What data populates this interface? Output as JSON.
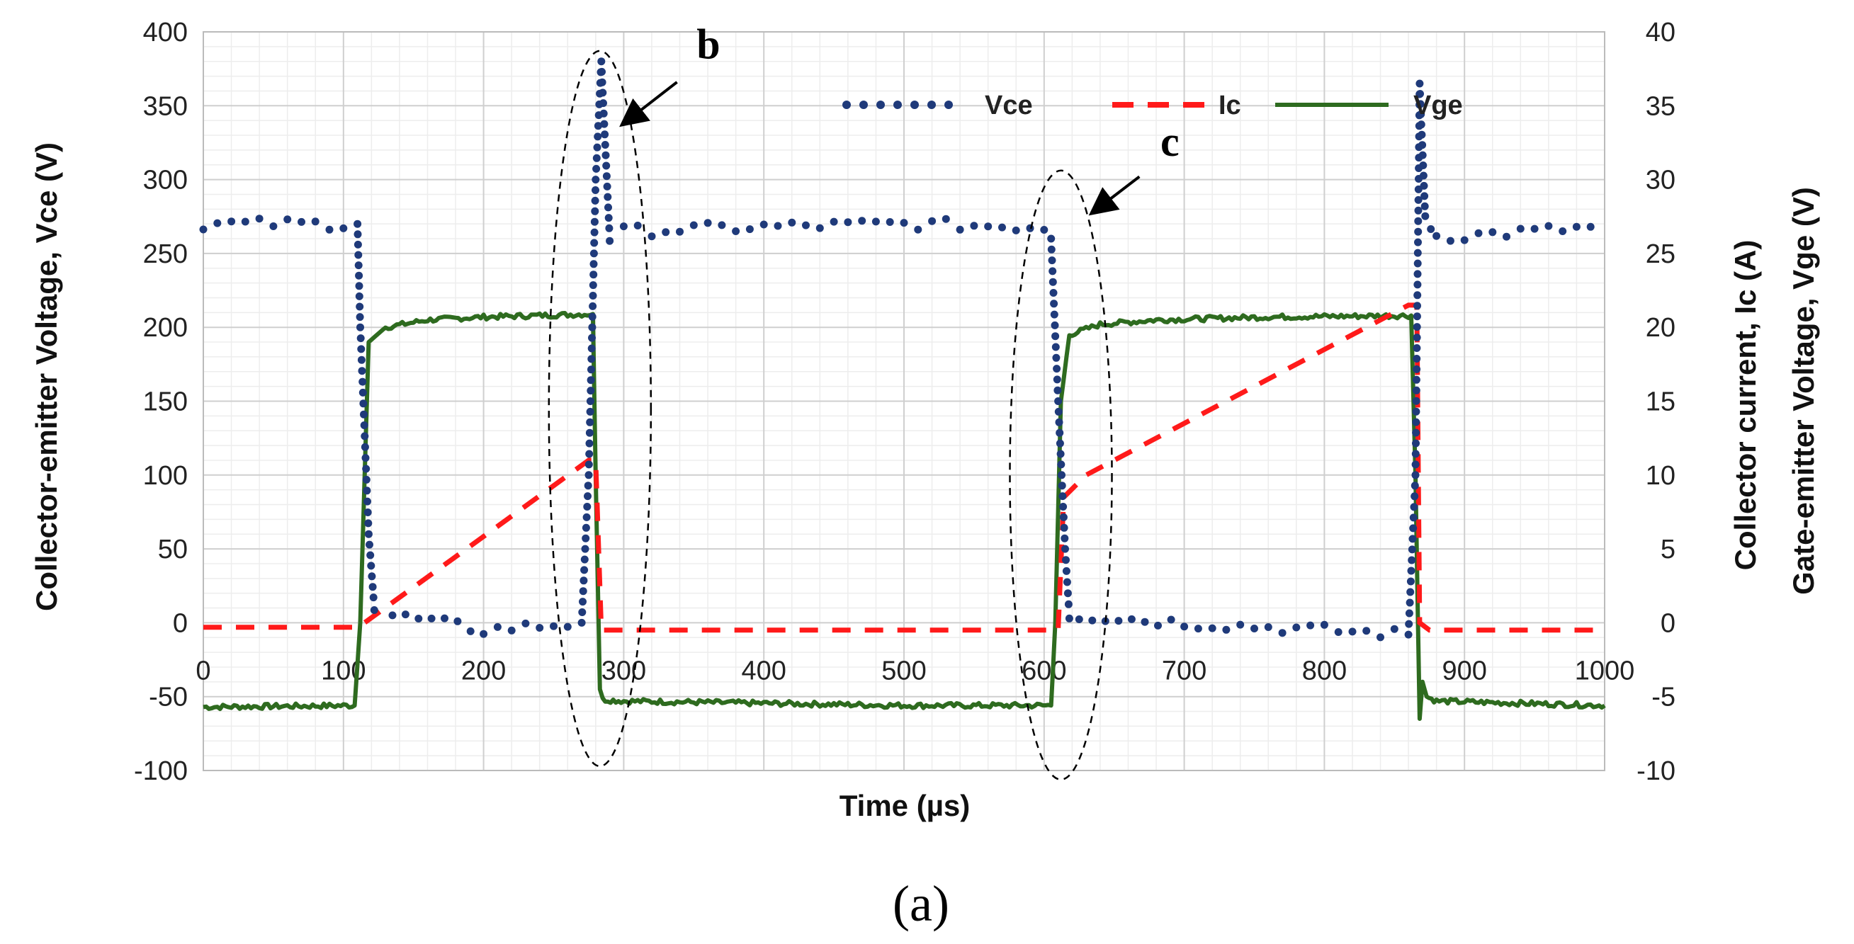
{
  "chart_data": {
    "type": "line",
    "xlabel": "Time  (µs)",
    "ylabel": "Collector-emitter Voltage, Vce (V)",
    "y2label": [
      "Collector current, Ic (A)",
      "Gate-emitter Voltage, Vge (V)"
    ],
    "panel_label": "(a)",
    "xlim": [
      0,
      1000
    ],
    "ylim": [
      -100,
      400
    ],
    "y2lim": [
      -10,
      40
    ],
    "x_ticks": [
      "0",
      "100",
      "200",
      "300",
      "400",
      "500",
      "600",
      "700",
      "800",
      "900",
      "1000"
    ],
    "y_ticks": [
      "-100",
      "-50",
      "0",
      "50",
      "100",
      "150",
      "200",
      "250",
      "300",
      "350",
      "400"
    ],
    "y2_ticks": [
      "-10",
      "-5",
      "0",
      "5",
      "10",
      "15",
      "20",
      "25",
      "30",
      "35",
      "40"
    ],
    "grid": true,
    "legend_position": "top-right",
    "colors": {
      "vce": "#1f3a7a",
      "ic": "#ff1a1a",
      "vge": "#2e6b1f"
    },
    "series": [
      {
        "name": "Vce",
        "axis": "left",
        "style": "dotted",
        "x": [
          0,
          110,
          112,
          118,
          122,
          135,
          200,
          270,
          275,
          280,
          284,
          290,
          300,
          400,
          500,
          600,
          605,
          610,
          615,
          618,
          625,
          700,
          800,
          860,
          865,
          868,
          872,
          880,
          900,
          1000
        ],
        "y": [
          270,
          270,
          200,
          60,
          10,
          5,
          -5,
          0,
          100,
          300,
          380,
          260,
          265,
          268,
          270,
          268,
          260,
          150,
          50,
          5,
          5,
          0,
          -5,
          -8,
          100,
          365,
          275,
          262,
          262,
          268
        ]
      },
      {
        "name": "Ic",
        "axis": "right",
        "style": "dashed",
        "x": [
          0,
          110,
          115,
          275,
          280,
          284,
          300,
          600,
          610,
          614,
          630,
          860,
          866,
          868,
          875,
          1000
        ],
        "y": [
          -0.3,
          -0.3,
          0,
          11,
          11,
          -0.5,
          -0.5,
          -0.5,
          -0.5,
          8.5,
          10,
          21.5,
          21.5,
          0,
          -0.5,
          -0.5
        ]
      },
      {
        "name": "Vge",
        "axis": "right",
        "style": "solid",
        "x": [
          0,
          108,
          112,
          118,
          130,
          160,
          200,
          278,
          280,
          283,
          285,
          300,
          500,
          605,
          608,
          612,
          618,
          640,
          680,
          760,
          862,
          865,
          868,
          870,
          873,
          880,
          1000
        ],
        "y": [
          -5.7,
          -5.6,
          0,
          19,
          20,
          20.5,
          20.7,
          20.9,
          10,
          -4.5,
          -5.2,
          -5.3,
          -5.6,
          -5.6,
          0,
          15,
          19.5,
          20.2,
          20.5,
          20.7,
          20.8,
          10,
          -6.5,
          -4,
          -5,
          -5.3,
          -5.6
        ]
      }
    ],
    "annotations": [
      {
        "label": "b",
        "target_x": 283,
        "target_y": 300
      },
      {
        "label": "c",
        "target_x": 612,
        "target_y": 250
      }
    ]
  }
}
